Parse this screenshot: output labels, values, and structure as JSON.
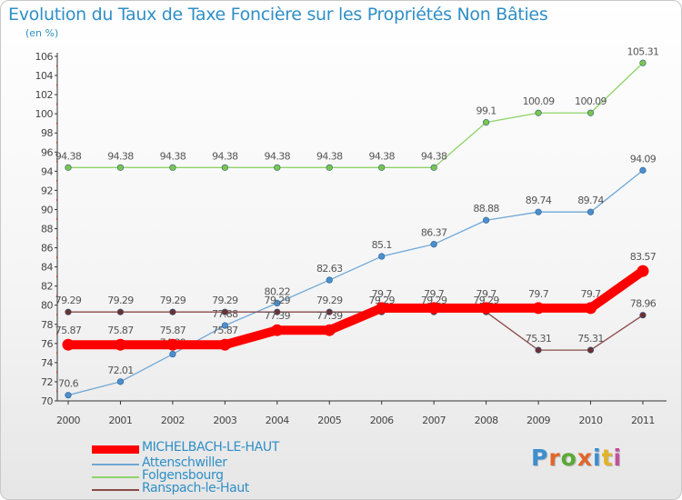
{
  "title": "Evolution du Taux de Taxe Foncière sur les Propriétés Non Bâties",
  "subtitle": "(en %)",
  "logo": {
    "text": "Proxiti",
    "colors": [
      "#3a8fd0",
      "#e0672c",
      "#5aaa36",
      "#e0672c",
      "#3a8fd0",
      "#e1b22c",
      "#c44f9d"
    ]
  },
  "chart_data": {
    "type": "line",
    "title": "Evolution du Taux de Taxe Foncière sur les Propriétés Non Bâties",
    "ylabel": "(en %)",
    "xlabel": "",
    "x": [
      "2000",
      "2001",
      "2002",
      "2003",
      "2004",
      "2005",
      "2006",
      "2007",
      "2008",
      "2009",
      "2010",
      "2011"
    ],
    "ylim": [
      70,
      106
    ],
    "yticks": [
      70,
      72,
      74,
      76,
      78,
      80,
      82,
      84,
      86,
      88,
      90,
      92,
      94,
      96,
      98,
      100,
      102,
      104,
      106
    ],
    "series": [
      {
        "name": "Folgensbourg",
        "color": "#8fd36a",
        "dot": "#7ac54c",
        "values": [
          94.38,
          94.38,
          94.38,
          94.38,
          94.38,
          94.38,
          94.38,
          94.38,
          99.1,
          100.09,
          100.09,
          105.31
        ],
        "labels": [
          "94.38",
          "94.38",
          "94.38",
          "94.38",
          "94.38",
          "94.38",
          "94.38",
          "94.38",
          "99.1",
          "100.09",
          "100.09",
          "105.31"
        ]
      },
      {
        "name": "Attenschwiller",
        "color": "#6fa8d6",
        "dot": "#4a8fcf",
        "values": [
          70.6,
          72.01,
          74.89,
          77.88,
          80.22,
          82.63,
          85.1,
          86.37,
          88.88,
          89.74,
          89.74,
          94.09
        ],
        "labels": [
          "70.6",
          "72.01",
          "74.89",
          "77.88",
          "80.22",
          "82.63",
          "85.1",
          "86.37",
          "88.88",
          "89.74",
          "89.74",
          "94.09"
        ]
      },
      {
        "name": "Ranspach-le-Haut",
        "color": "#8a4a4a",
        "dot": "#6e3030",
        "values": [
          79.29,
          79.29,
          79.29,
          79.29,
          79.29,
          79.29,
          79.29,
          79.29,
          79.29,
          75.31,
          75.31,
          78.96
        ],
        "labels": [
          "79.29",
          "79.29",
          "79.29",
          "79.29",
          "79.29",
          "79.29",
          "79.29",
          "79.29",
          "79.29",
          "75.31",
          "75.31",
          "78.96"
        ]
      },
      {
        "name": "MICHELBACH-LE-HAUT",
        "color": "#ff0000",
        "dot": "#ff0000",
        "values": [
          75.87,
          75.87,
          75.87,
          75.87,
          77.39,
          77.39,
          79.7,
          79.7,
          79.7,
          79.7,
          79.7,
          83.57
        ],
        "labels": [
          "75.87",
          "75.87",
          "75.87",
          "75.87",
          "77.39",
          "77.39",
          "79.7",
          "79.7",
          "79.7",
          "79.7",
          "79.7",
          "83.57"
        ]
      }
    ],
    "legend_order": [
      "MICHELBACH-LE-HAUT",
      "Attenschwiller",
      "Folgensbourg",
      "Ranspach-le-Haut"
    ],
    "legend_position": "bottom-left",
    "grid": false
  }
}
